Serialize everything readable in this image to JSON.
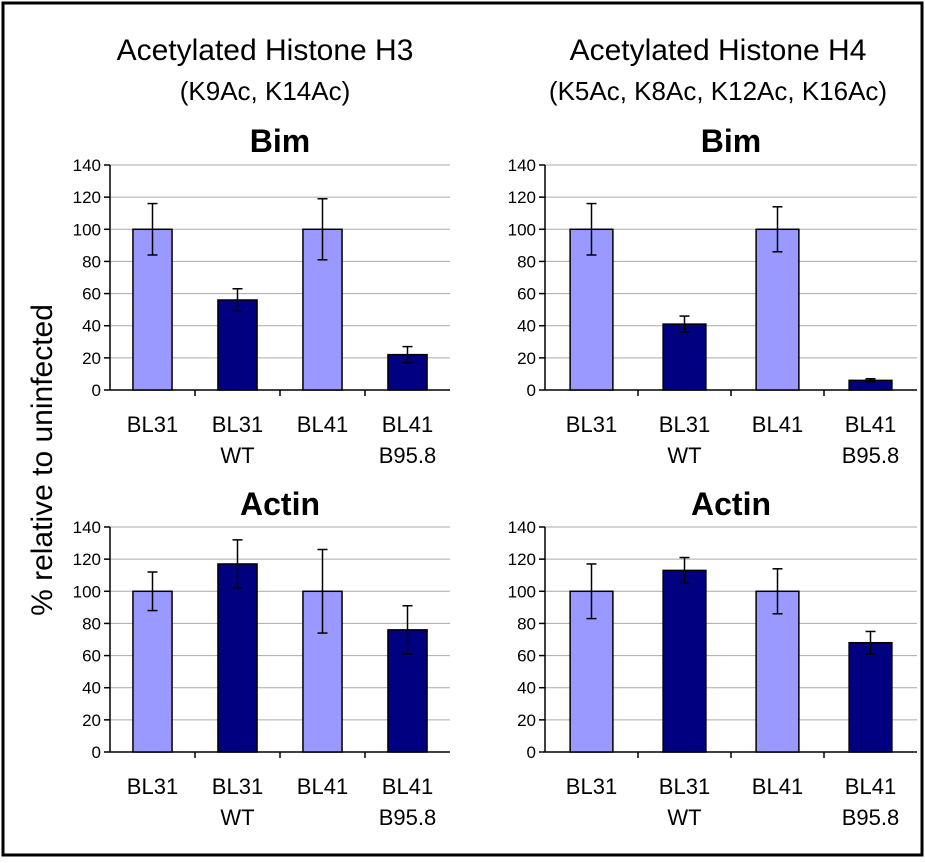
{
  "figure": {
    "ylabel": "% relative to uninfected",
    "columns": [
      {
        "title": "Acetylated Histone H3",
        "subtitle": "(K9Ac, K14Ac)"
      },
      {
        "title": "Acetylated Histone H4",
        "subtitle": "(K5Ac, K8Ac, K12Ac, K16Ac)"
      }
    ]
  },
  "colors": {
    "light_bar": "#9999ff",
    "dark_bar": "#000080",
    "grid": "#aaaaaa",
    "frame": "#000000"
  },
  "chart_data": [
    {
      "type": "bar",
      "title": "Bim",
      "column": "Acetylated Histone H3",
      "categories": [
        [
          "BL31",
          ""
        ],
        [
          "BL31",
          "WT"
        ],
        [
          "BL41",
          ""
        ],
        [
          "BL41",
          "B95.8"
        ]
      ],
      "values": [
        100,
        56,
        100,
        22
      ],
      "errors": [
        16,
        7,
        19,
        5
      ],
      "bar_colors": [
        "light",
        "dark",
        "light",
        "dark"
      ],
      "ylim": [
        0,
        140
      ],
      "yticks": [
        0,
        20,
        40,
        60,
        80,
        100,
        120,
        140
      ],
      "grid": true
    },
    {
      "type": "bar",
      "title": "Bim",
      "column": "Acetylated Histone H4",
      "categories": [
        [
          "BL31",
          ""
        ],
        [
          "BL31",
          "WT"
        ],
        [
          "BL41",
          ""
        ],
        [
          "BL41",
          "B95.8"
        ]
      ],
      "values": [
        100,
        41,
        100,
        6
      ],
      "errors": [
        16,
        5,
        14,
        1
      ],
      "bar_colors": [
        "light",
        "dark",
        "light",
        "dark"
      ],
      "ylim": [
        0,
        140
      ],
      "yticks": [
        0,
        20,
        40,
        60,
        80,
        100,
        120,
        140
      ],
      "grid": true
    },
    {
      "type": "bar",
      "title": "Actin",
      "column": "Acetylated Histone H3",
      "categories": [
        [
          "BL31",
          ""
        ],
        [
          "BL31",
          "WT"
        ],
        [
          "BL41",
          ""
        ],
        [
          "BL41",
          "B95.8"
        ]
      ],
      "values": [
        100,
        117,
        100,
        76
      ],
      "errors": [
        12,
        15,
        26,
        15
      ],
      "bar_colors": [
        "light",
        "dark",
        "light",
        "dark"
      ],
      "ylim": [
        0,
        140
      ],
      "yticks": [
        0,
        20,
        40,
        60,
        80,
        100,
        120,
        140
      ],
      "grid": true
    },
    {
      "type": "bar",
      "title": "Actin",
      "column": "Acetylated Histone H4",
      "categories": [
        [
          "BL31",
          ""
        ],
        [
          "BL31",
          "WT"
        ],
        [
          "BL41",
          ""
        ],
        [
          "BL41",
          "B95.8"
        ]
      ],
      "values": [
        100,
        113,
        100,
        68
      ],
      "errors": [
        17,
        8,
        14,
        7
      ],
      "bar_colors": [
        "light",
        "dark",
        "light",
        "dark"
      ],
      "ylim": [
        0,
        140
      ],
      "yticks": [
        0,
        20,
        40,
        60,
        80,
        100,
        120,
        140
      ],
      "grid": true
    }
  ]
}
